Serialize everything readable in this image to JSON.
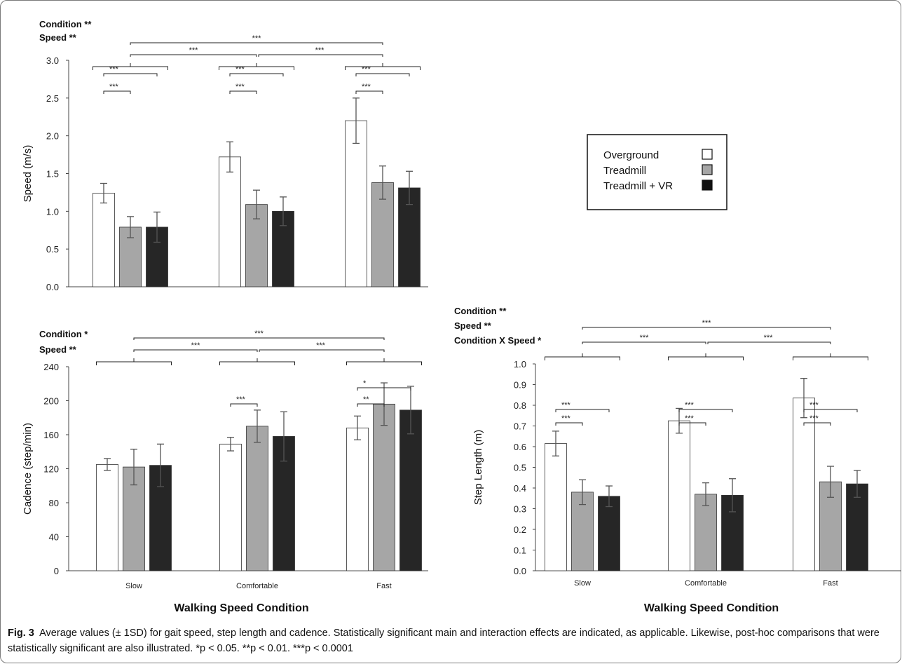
{
  "colors": {
    "overground": "#ffffff",
    "treadmill": "#a6a6a6",
    "treadmill_vr": "#262626",
    "bar_stroke": "#333333",
    "error_bar": "#555555"
  },
  "legend": {
    "items": [
      {
        "label": "Overground",
        "color": "#ffffff"
      },
      {
        "label": "Treadmill",
        "color": "#a6a6a6"
      },
      {
        "label": "Treadmill + VR",
        "color": "#111111"
      }
    ]
  },
  "caption": {
    "label": "Fig. 3",
    "text": "Average values (± 1SD) for gait speed, step length and cadence. Statistically significant main and interaction effects are indicated, as applicable. Likewise, post-hoc comparisons that were statistically significant are also illustrated. *p < 0.05. **p < 0.01. ***p < 0.0001"
  },
  "chart_data": [
    {
      "type": "bar",
      "ylabel": "Speed (m/s)",
      "xlabel": "",
      "ylim": [
        0,
        3.0
      ],
      "yticks": [
        "0.0",
        "0.5",
        "1.0",
        "1.5",
        "2.0",
        "2.5",
        "3.0"
      ],
      "categories": [
        "",
        "",
        ""
      ],
      "effects": [
        "Condition **",
        "Speed **"
      ],
      "series": [
        {
          "name": "Overground",
          "values": [
            1.24,
            1.72,
            2.2
          ],
          "errors": [
            0.13,
            0.2,
            0.3
          ]
        },
        {
          "name": "Treadmill",
          "values": [
            0.79,
            1.09,
            1.38
          ],
          "errors": [
            0.14,
            0.19,
            0.22
          ]
        },
        {
          "name": "Treadmill + VR",
          "values": [
            0.79,
            1.0,
            1.31
          ],
          "errors": [
            0.2,
            0.19,
            0.22
          ]
        }
      ],
      "group_significance": [
        {
          "from": 0,
          "to": 2,
          "label": "***"
        },
        {
          "from": 0,
          "to": 1,
          "label": "***"
        },
        {
          "from": 1,
          "to": 2,
          "label": "***"
        }
      ],
      "pairwise_significance": [
        {
          "group": 0,
          "from": 0,
          "to": 1,
          "label": "***"
        },
        {
          "group": 0,
          "from": 0,
          "to": 2,
          "label": "***"
        },
        {
          "group": 1,
          "from": 0,
          "to": 1,
          "label": "***"
        },
        {
          "group": 1,
          "from": 0,
          "to": 2,
          "label": "***"
        },
        {
          "group": 2,
          "from": 0,
          "to": 1,
          "label": "***"
        },
        {
          "group": 2,
          "from": 0,
          "to": 2,
          "label": "***"
        }
      ]
    },
    {
      "type": "bar",
      "ylabel": "Cadence (step/min)",
      "xlabel": "Walking Speed Condition",
      "ylim": [
        0,
        240
      ],
      "yticks": [
        "0",
        "40",
        "80",
        "120",
        "160",
        "200",
        "240"
      ],
      "categories": [
        "Slow",
        "Comfortable",
        "Fast"
      ],
      "effects": [
        "Condition *",
        "Speed **"
      ],
      "series": [
        {
          "name": "Overground",
          "values": [
            125,
            149,
            168
          ],
          "errors": [
            7,
            8,
            14
          ]
        },
        {
          "name": "Treadmill",
          "values": [
            122,
            170,
            196
          ],
          "errors": [
            21,
            19,
            25
          ]
        },
        {
          "name": "Treadmill + VR",
          "values": [
            124,
            158,
            189
          ],
          "errors": [
            25,
            29,
            28
          ]
        }
      ],
      "group_significance": [
        {
          "from": 0,
          "to": 2,
          "label": "***"
        },
        {
          "from": 0,
          "to": 1,
          "label": "***"
        },
        {
          "from": 1,
          "to": 2,
          "label": "***"
        }
      ],
      "pairwise_significance": [
        {
          "group": 1,
          "from": 0,
          "to": 1,
          "label": "***"
        },
        {
          "group": 2,
          "from": 0,
          "to": 1,
          "label": "**"
        },
        {
          "group": 2,
          "from": 0,
          "to": 2,
          "label": "*"
        }
      ]
    },
    {
      "type": "bar",
      "ylabel": "Step Length (m)",
      "xlabel": "Walking Speed Condition",
      "ylim": [
        0,
        1.0
      ],
      "yticks": [
        "0.0",
        "0.1",
        "0.2",
        "0.3",
        "0.4",
        "0.5",
        "0.6",
        "0.7",
        "0.8",
        "0.9",
        "1.0"
      ],
      "categories": [
        "Slow",
        "Comfortable",
        "Fast"
      ],
      "effects": [
        "Condition **",
        "Speed **",
        "Condition X Speed *"
      ],
      "series": [
        {
          "name": "Overground",
          "values": [
            0.615,
            0.725,
            0.835
          ],
          "errors": [
            0.06,
            0.06,
            0.095
          ]
        },
        {
          "name": "Treadmill",
          "values": [
            0.38,
            0.37,
            0.43
          ],
          "errors": [
            0.06,
            0.055,
            0.075
          ]
        },
        {
          "name": "Treadmill + VR",
          "values": [
            0.36,
            0.365,
            0.42
          ],
          "errors": [
            0.05,
            0.08,
            0.065
          ]
        }
      ],
      "group_significance": [
        {
          "from": 0,
          "to": 2,
          "label": "***"
        },
        {
          "from": 0,
          "to": 1,
          "label": "***"
        },
        {
          "from": 1,
          "to": 2,
          "label": "***"
        }
      ],
      "pairwise_significance": [
        {
          "group": 0,
          "from": 0,
          "to": 1,
          "label": "***"
        },
        {
          "group": 0,
          "from": 0,
          "to": 2,
          "label": "***"
        },
        {
          "group": 1,
          "from": 0,
          "to": 1,
          "label": "***"
        },
        {
          "group": 1,
          "from": 0,
          "to": 2,
          "label": "***"
        },
        {
          "group": 2,
          "from": 0,
          "to": 1,
          "label": "***"
        },
        {
          "group": 2,
          "from": 0,
          "to": 2,
          "label": "***"
        }
      ]
    }
  ]
}
